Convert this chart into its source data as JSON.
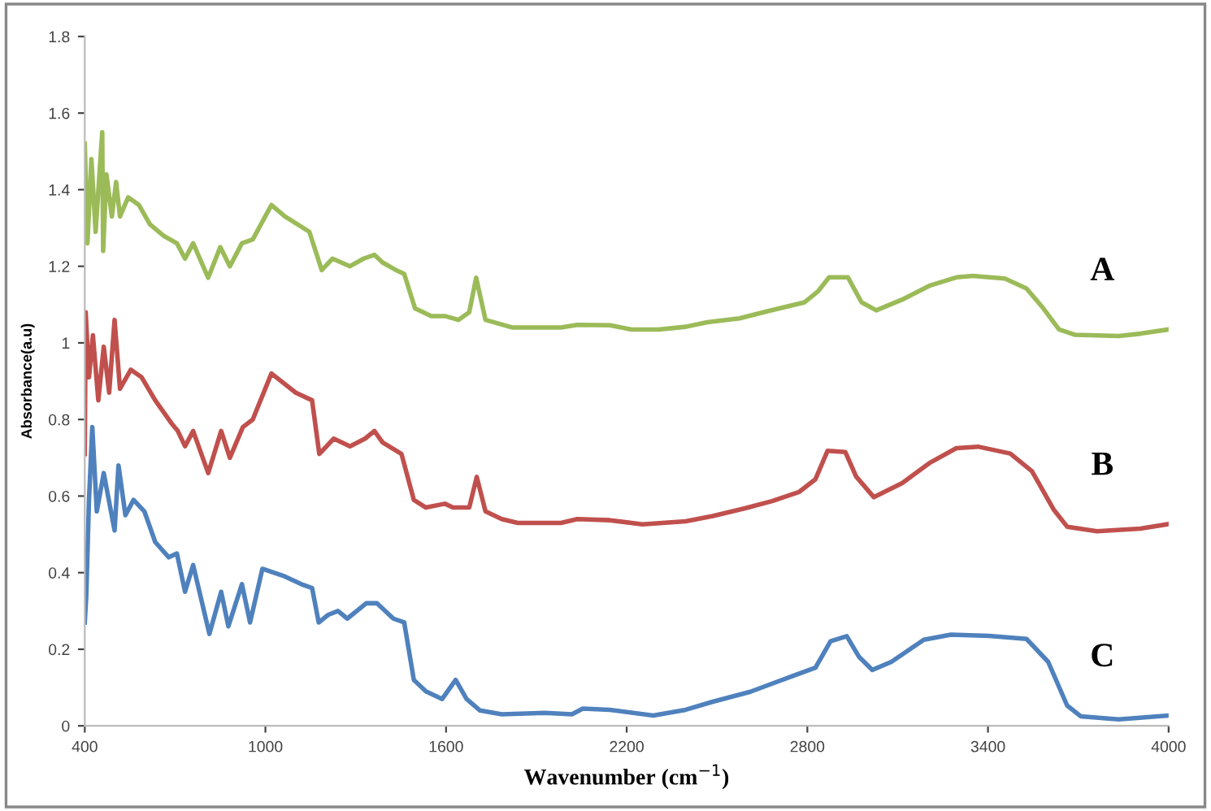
{
  "chart_data": {
    "type": "line",
    "xlabel": "Wavenumber (cm$^{−1}$)",
    "ylabel": "Absorbance(a.u)",
    "xlim": [
      400,
      4000
    ],
    "xticks": [
      400,
      1000,
      1600,
      2200,
      2800,
      3400,
      4000
    ],
    "ylim": [
      0,
      1.8
    ],
    "yticks": [
      0,
      0.2,
      0.4,
      0.6,
      0.8,
      1,
      1.2,
      1.4,
      1.6,
      1.8
    ],
    "grid": false,
    "legend": false,
    "marker": "none",
    "line_style": "solid",
    "series": [
      {
        "name": "A",
        "color": "#9bbb59",
        "x": [
          400,
          409,
          422,
          436,
          458,
          461,
          472,
          490,
          504,
          517,
          544,
          580,
          616,
          661,
          706,
          733,
          760,
          810,
          850,
          882,
          922,
          958,
          1020,
          1065,
          1146,
          1187,
          1223,
          1281,
          1326,
          1362,
          1389,
          1434,
          1461,
          1497,
          1551,
          1596,
          1641,
          1677,
          1700,
          1731,
          1821,
          1982,
          2036,
          2144,
          2216,
          2306,
          2396,
          2468,
          2575,
          2665,
          2791,
          2836,
          2872,
          2935,
          2980,
          3029,
          3115,
          3205,
          3295,
          3349,
          3456,
          3528,
          3582,
          3636,
          3690,
          3834,
          3906,
          4000
        ],
        "values": [
          1.52,
          1.26,
          1.48,
          1.29,
          1.55,
          1.24,
          1.44,
          1.33,
          1.42,
          1.33,
          1.38,
          1.36,
          1.31,
          1.28,
          1.26,
          1.22,
          1.26,
          1.17,
          1.25,
          1.2,
          1.26,
          1.27,
          1.36,
          1.33,
          1.29,
          1.19,
          1.22,
          1.2,
          1.22,
          1.23,
          1.21,
          1.19,
          1.18,
          1.09,
          1.07,
          1.07,
          1.06,
          1.08,
          1.17,
          1.06,
          1.04,
          1.04,
          1.047,
          1.046,
          1.035,
          1.035,
          1.042,
          1.054,
          1.064,
          1.082,
          1.106,
          1.135,
          1.171,
          1.171,
          1.106,
          1.085,
          1.113,
          1.149,
          1.171,
          1.175,
          1.168,
          1.142,
          1.092,
          1.035,
          1.021,
          1.018,
          1.024,
          1.035
        ]
      },
      {
        "name": "B",
        "color": "#c0504d",
        "x": [
          400,
          403,
          414,
          427,
          445,
          463,
          481,
          499,
          517,
          553,
          589,
          634,
          688,
          709,
          733,
          760,
          810,
          853,
          882,
          925,
          958,
          1020,
          1101,
          1155,
          1179,
          1227,
          1281,
          1331,
          1362,
          1389,
          1452,
          1493,
          1533,
          1596,
          1623,
          1677,
          1702,
          1731,
          1785,
          1838,
          1982,
          2036,
          2144,
          2252,
          2396,
          2486,
          2593,
          2683,
          2773,
          2827,
          2867,
          2926,
          2962,
          3021,
          3115,
          3205,
          3295,
          3367,
          3474,
          3546,
          3618,
          3663,
          3762,
          3906,
          4000
        ],
        "values": [
          0.71,
          1.08,
          0.91,
          1.02,
          0.85,
          0.99,
          0.87,
          1.06,
          0.88,
          0.93,
          0.91,
          0.85,
          0.79,
          0.77,
          0.73,
          0.77,
          0.66,
          0.77,
          0.7,
          0.78,
          0.8,
          0.92,
          0.87,
          0.85,
          0.71,
          0.75,
          0.73,
          0.75,
          0.77,
          0.74,
          0.71,
          0.59,
          0.57,
          0.58,
          0.57,
          0.57,
          0.65,
          0.56,
          0.54,
          0.53,
          0.53,
          0.54,
          0.537,
          0.526,
          0.534,
          0.548,
          0.568,
          0.587,
          0.611,
          0.644,
          0.718,
          0.715,
          0.651,
          0.597,
          0.634,
          0.686,
          0.725,
          0.729,
          0.711,
          0.665,
          0.565,
          0.52,
          0.508,
          0.515,
          0.527
        ]
      },
      {
        "name": "C",
        "color": "#4f81bd",
        "x": [
          400,
          405,
          414,
          425,
          440,
          463,
          499,
          512,
          535,
          562,
          598,
          634,
          679,
          706,
          733,
          760,
          814,
          853,
          877,
          922,
          949,
          990,
          1065,
          1119,
          1155,
          1177,
          1209,
          1241,
          1272,
          1335,
          1371,
          1425,
          1461,
          1493,
          1533,
          1587,
          1632,
          1668,
          1713,
          1785,
          1928,
          2018,
          2054,
          2144,
          2288,
          2396,
          2486,
          2611,
          2665,
          2755,
          2827,
          2877,
          2931,
          2971,
          3016,
          3079,
          3187,
          3277,
          3403,
          3528,
          3600,
          3663,
          3708,
          3834,
          4000
        ],
        "values": [
          0.27,
          0.34,
          0.59,
          0.78,
          0.56,
          0.66,
          0.51,
          0.68,
          0.55,
          0.59,
          0.56,
          0.48,
          0.44,
          0.45,
          0.35,
          0.42,
          0.24,
          0.35,
          0.26,
          0.37,
          0.27,
          0.41,
          0.39,
          0.37,
          0.36,
          0.27,
          0.29,
          0.3,
          0.28,
          0.32,
          0.32,
          0.28,
          0.27,
          0.12,
          0.09,
          0.07,
          0.12,
          0.07,
          0.04,
          0.03,
          0.034,
          0.03,
          0.045,
          0.042,
          0.027,
          0.042,
          0.063,
          0.089,
          0.105,
          0.131,
          0.152,
          0.221,
          0.234,
          0.181,
          0.146,
          0.167,
          0.225,
          0.238,
          0.235,
          0.227,
          0.167,
          0.053,
          0.025,
          0.017,
          0.027
        ]
      }
    ]
  }
}
